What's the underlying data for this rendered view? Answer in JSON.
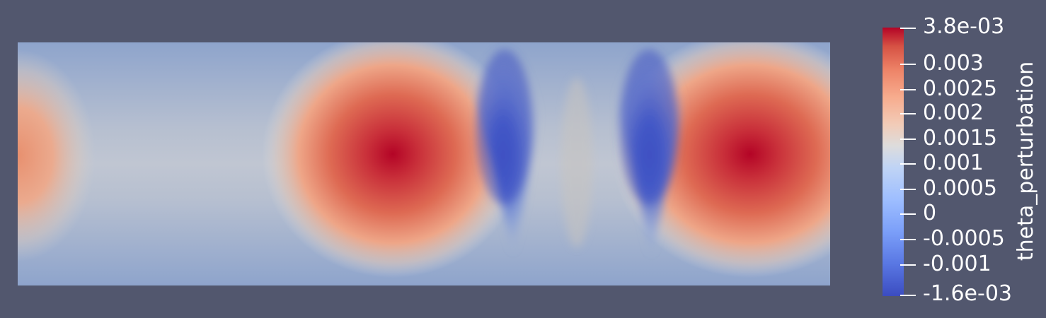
{
  "colorbar": {
    "title": "theta_perturbation",
    "range": [
      -0.0016,
      0.0038
    ],
    "max_label": "3.8e-03",
    "min_label": "-1.6e-03",
    "ticks": [
      "0.003",
      "0.0025",
      "0.002",
      "0.0015",
      "0.001",
      "0.0005",
      "0",
      "-0.0005",
      "-0.001"
    ],
    "colormap": "cool to warm",
    "low_color": "#3b4cc0",
    "mid_color": "#dddddd",
    "high_color": "#b40426"
  },
  "background_color": "#52576e"
}
